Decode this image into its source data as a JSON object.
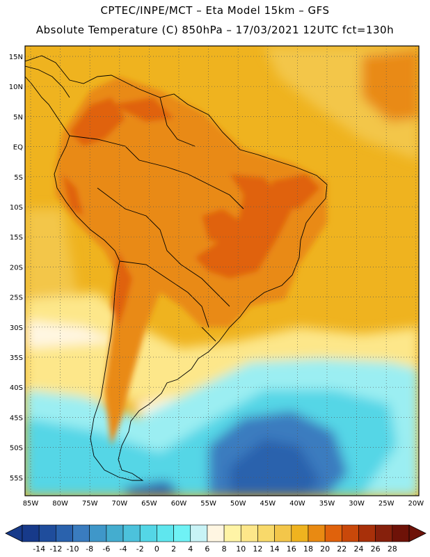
{
  "header": {
    "line1": "CPTEC/INPE/MCT –  Eta Model 15km – GFS",
    "line2": "Absolute Temperature (C) 850hPa – 17/03/2021 12UTC fct=130h"
  },
  "axes": {
    "lat_labels": [
      "15N",
      "10N",
      "5N",
      "EQ",
      "5S",
      "10S",
      "15S",
      "20S",
      "25S",
      "30S",
      "35S",
      "40S",
      "45S",
      "50S",
      "55S"
    ],
    "lon_labels": [
      "85W",
      "80W",
      "75W",
      "70W",
      "65W",
      "60W",
      "55W",
      "50W",
      "45W",
      "40W",
      "35W",
      "30W",
      "25W",
      "20W"
    ]
  },
  "colorbar": {
    "labels": [
      "-14",
      "-12",
      "-10",
      "-8",
      "-6",
      "-4",
      "-2",
      "0",
      "2",
      "4",
      "6",
      "8",
      "10",
      "12",
      "14",
      "16",
      "18",
      "20",
      "22",
      "24",
      "26",
      "28"
    ],
    "colors": [
      "#173a8a",
      "#1f4d9c",
      "#2a62ad",
      "#3a7cbf",
      "#3f97c9",
      "#44adcf",
      "#4cc2dc",
      "#54d6e6",
      "#5fe6ee",
      "#6ff2f5",
      "#c8f3f6",
      "#fff6e2",
      "#fff4a6",
      "#fde78a",
      "#f8d96a",
      "#f3c64a",
      "#efb31f",
      "#e98a12",
      "#e0620c",
      "#c9480a",
      "#a8300a",
      "#86200c",
      "#6e1208"
    ]
  },
  "palette": {
    "ocean_warm": "#efb31f",
    "ocean_light": "#f3c64a",
    "land_hot": "#e0620c",
    "land_warm": "#e98a12",
    "cold_cyan": "#54d6e6",
    "cold_blue": "#2a62ad",
    "cream": "#fff6e2",
    "yellow": "#fde78a"
  }
}
